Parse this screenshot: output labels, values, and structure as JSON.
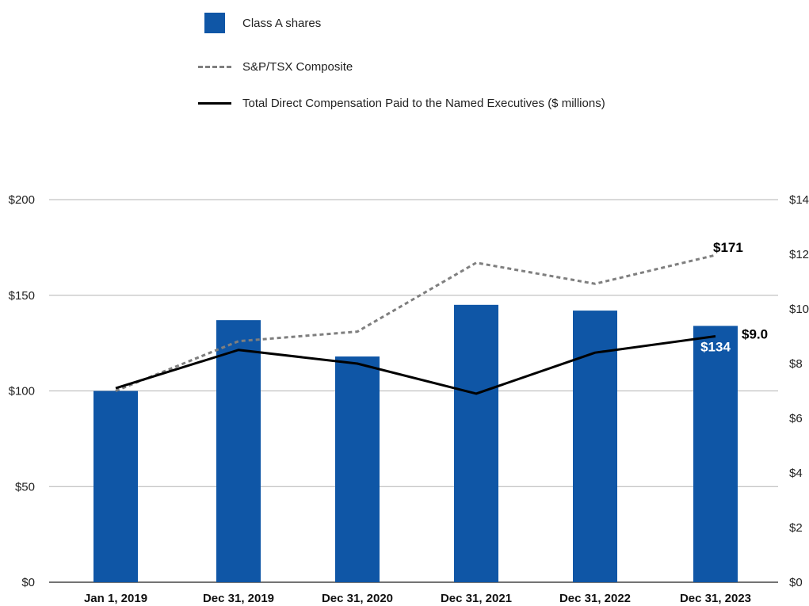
{
  "chart_data": {
    "type": "bar",
    "categories": [
      "Jan 1, 2019",
      "Dec 31, 2019",
      "Dec 31, 2020",
      "Dec 31, 2021",
      "Dec 31, 2022",
      "Dec 31, 2023"
    ],
    "left_axis": {
      "ticks": [
        "$0",
        "$50",
        "$100",
        "$150",
        "$200"
      ],
      "ylim": [
        0,
        200
      ]
    },
    "right_axis": {
      "ticks": [
        "$0",
        "$2",
        "$4",
        "$6",
        "$8",
        "$10",
        "$12",
        "$14"
      ],
      "ylim": [
        0,
        14
      ]
    },
    "grid": true,
    "series": [
      {
        "name": "Class A shares",
        "kind": "bar",
        "axis": "left",
        "color": "#0f56a6",
        "values": [
          100,
          137,
          118,
          145,
          142,
          134
        ]
      },
      {
        "name": "S&P/TSX Composite",
        "kind": "line-dashed",
        "axis": "left",
        "color": "#7f7f7f",
        "values": [
          100,
          126,
          131,
          167,
          156,
          171
        ]
      },
      {
        "name": "Total Direct Compensation Paid to the Named Executives ($ millions)",
        "kind": "line",
        "axis": "right",
        "color": "#000000",
        "values": [
          7.1,
          8.5,
          8.0,
          6.9,
          8.4,
          9.0
        ]
      }
    ],
    "annotations": [
      "$171",
      "$134",
      "$9.0"
    ],
    "legend_placement": "top"
  }
}
